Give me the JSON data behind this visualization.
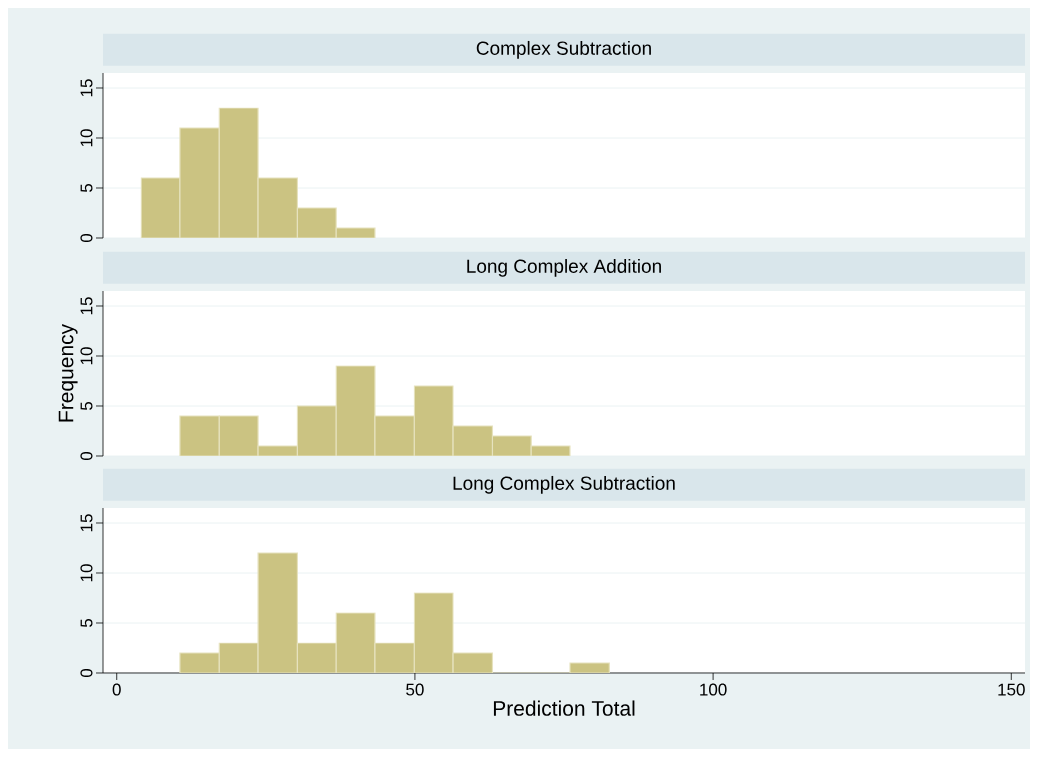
{
  "chart_data": [
    {
      "type": "histogram",
      "title": "Complex Subtraction",
      "bins": [
        4.1,
        10.6,
        17.2,
        23.7,
        30.3,
        36.8,
        43.3
      ],
      "values": [
        6,
        11,
        13,
        6,
        3,
        1
      ],
      "color": "#cbc382",
      "xlim": [
        -2.3,
        152.3
      ],
      "xticks": [
        0,
        50,
        100,
        150
      ],
      "ylim": [
        0,
        16.5
      ],
      "yticks": [
        0,
        5,
        10,
        15
      ],
      "grid": "y",
      "tick_labels": "y"
    },
    {
      "type": "histogram",
      "title": "Long Complex Addition",
      "ylabel": "Frequency",
      "bins": [
        10.6,
        17.2,
        23.7,
        30.3,
        36.8,
        43.3,
        49.9,
        56.4,
        63.0,
        69.5,
        76.0
      ],
      "values": [
        4,
        4,
        1,
        5,
        9,
        4,
        7,
        3,
        2,
        1
      ],
      "color": "#cbc382",
      "xlim": [
        -2.3,
        152.3
      ],
      "xticks": [
        0,
        50,
        100,
        150
      ],
      "ylim": [
        0,
        16.5
      ],
      "yticks": [
        0,
        5,
        10,
        15
      ],
      "grid": "y",
      "tick_labels": "y"
    },
    {
      "type": "histogram",
      "title": "Long Complex Subtraction",
      "xlabel": "Prediction Total",
      "bins": [
        10.6,
        17.2,
        23.7,
        30.3,
        36.8,
        43.3,
        49.9,
        56.4,
        63.0,
        76.0,
        82.6
      ],
      "values": [
        2,
        3,
        12,
        3,
        6,
        3,
        8,
        2,
        0,
        1
      ],
      "color": "#cbc382",
      "xlim": [
        -2.3,
        152.3
      ],
      "xticks": [
        0,
        50,
        100,
        150
      ],
      "ylim": [
        0,
        16.5
      ],
      "yticks": [
        0,
        5,
        10,
        15
      ],
      "grid": "y"
    }
  ]
}
